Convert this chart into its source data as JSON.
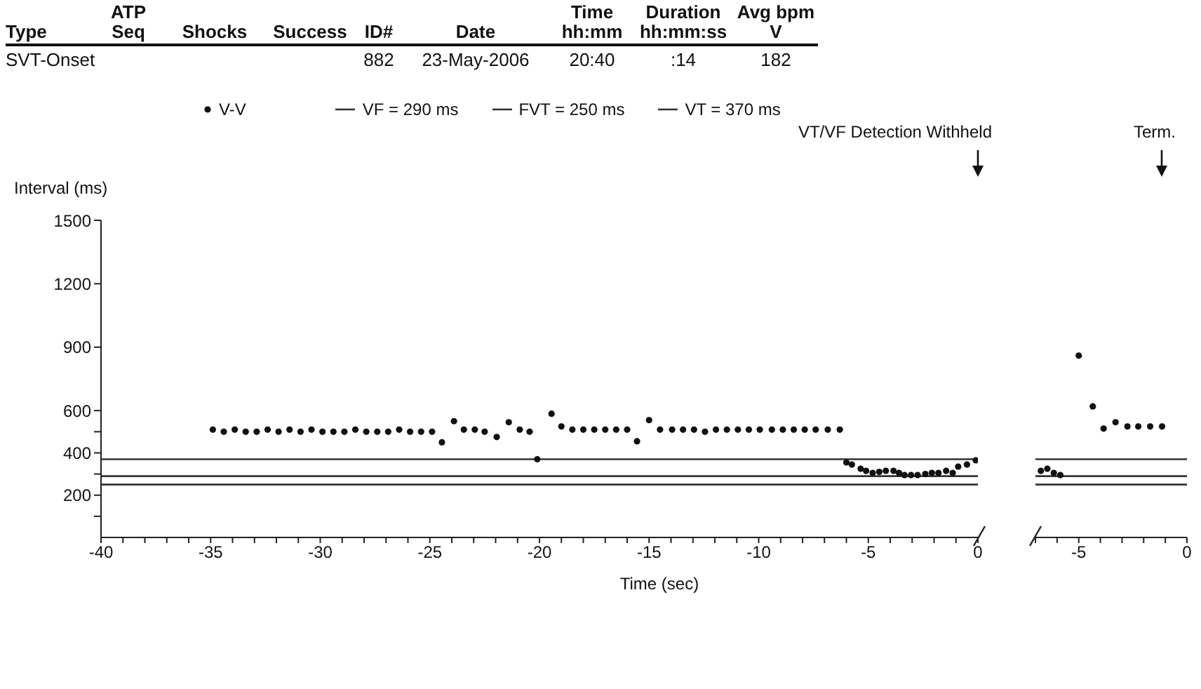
{
  "chart_data": [
    {
      "type": "other",
      "categories": [
        "Type",
        "ATP\nSeq",
        "Shocks",
        "Success",
        "ID#",
        "Date",
        "Time\nhh:mm",
        "Duration\nhh:mm:ss",
        "Avg bpm\nV"
      ],
      "annotations": [
        {
          "text": "SVT-Onset",
          "x": "Type"
        },
        {
          "text": "882",
          "x": "ID#"
        },
        {
          "text": "23-May-2006",
          "x": "Date"
        },
        {
          "text": "20:40",
          "x": "Time\nhh:mm"
        },
        {
          "text": ":14",
          "x": "Duration\nhh:mm:ss"
        },
        {
          "text": "182",
          "x": "Avg bpm\nV"
        }
      ]
    },
    {
      "type": "scatter",
      "xlabel": "Time (sec)",
      "ylabel": "Interval (ms)",
      "legend": "top",
      "marker": "circle",
      "grid": false,
      "xlim": [
        -40,
        0
      ],
      "ylim": [
        0,
        1500
      ],
      "xticks": [
        -40,
        {
          "value": -39,
          "label": null
        },
        {
          "value": -38,
          "label": null
        },
        {
          "value": -37,
          "label": null
        },
        {
          "value": -36,
          "label": null
        },
        -35,
        {
          "value": -34,
          "label": null
        },
        {
          "value": -33,
          "label": null
        },
        {
          "value": -32,
          "label": null
        },
        {
          "value": -31,
          "label": null
        },
        -30,
        {
          "value": -29,
          "label": null
        },
        {
          "value": -28,
          "label": null
        },
        {
          "value": -27,
          "label": null
        },
        {
          "value": -26,
          "label": null
        },
        -25,
        {
          "value": -24,
          "label": null
        },
        {
          "value": -23,
          "label": null
        },
        {
          "value": -22,
          "label": null
        },
        {
          "value": -21,
          "label": null
        },
        -20,
        {
          "value": -19,
          "label": null
        },
        {
          "value": -18,
          "label": null
        },
        {
          "value": -17,
          "label": null
        },
        {
          "value": -16,
          "label": null
        },
        -15,
        {
          "value": -14,
          "label": null
        },
        {
          "value": -13,
          "label": null
        },
        {
          "value": -12,
          "label": null
        },
        {
          "value": -11,
          "label": null
        },
        -10,
        {
          "value": -9,
          "label": null
        },
        {
          "value": -8,
          "label": null
        },
        {
          "value": -7,
          "label": null
        },
        {
          "value": -6,
          "label": null
        },
        -5,
        {
          "value": -4,
          "label": null
        },
        {
          "value": -3,
          "label": null
        },
        {
          "value": -2,
          "label": null
        },
        {
          "value": -1,
          "label": null
        },
        0
      ],
      "yticks": [
        {
          "value": 100,
          "label": null
        },
        200,
        {
          "value": 300,
          "label": null
        },
        400,
        {
          "value": 500,
          "label": null
        },
        600,
        900,
        1200,
        1500
      ],
      "ref_lines": [
        {
          "axis": "y",
          "value": 290,
          "label": "VF = 290 ms",
          "color": "#333333"
        },
        {
          "axis": "y",
          "value": 250,
          "label": "FVT = 250 ms",
          "color": "#333333"
        },
        {
          "axis": "y",
          "value": 370,
          "label": "VT = 370 ms",
          "color": "#333333"
        }
      ],
      "annotations": [
        "VT/VF Detection Withheld"
      ],
      "series": [
        {
          "name": "V-V",
          "color": "#111111",
          "x": [
            -34.9,
            -34.4,
            -33.9,
            -33.4,
            -32.9,
            -32.4,
            -31.9,
            -31.4,
            -30.9,
            -30.4,
            -29.9,
            -29.4,
            -28.9,
            -28.4,
            -27.9,
            -27.4,
            -26.9,
            -26.4,
            -25.9,
            -25.4,
            -24.9,
            -24.45,
            -23.9,
            -23.45,
            -22.95,
            -22.5,
            -21.95,
            -21.4,
            -20.9,
            -20.45,
            -20.1,
            -19.45,
            -19.0,
            -18.5,
            -18.0,
            -17.5,
            -17.0,
            -16.5,
            -16.0,
            -15.55,
            -15.0,
            -14.5,
            -13.95,
            -13.45,
            -12.95,
            -12.45,
            -11.95,
            -11.45,
            -10.95,
            -10.45,
            -9.95,
            -9.4,
            -8.9,
            -8.4,
            -7.9,
            -7.4,
            -6.85,
            -6.3,
            -6.0,
            -5.75,
            -5.35,
            -5.1,
            -4.8,
            -4.5,
            -4.2,
            -3.85,
            -3.6,
            -3.35,
            -3.05,
            -2.75,
            -2.4,
            -2.1,
            -1.8,
            -1.45,
            -1.15,
            -0.9,
            -0.5,
            -0.1
          ],
          "values": [
            510,
            500,
            510,
            500,
            500,
            510,
            500,
            510,
            500,
            510,
            500,
            500,
            500,
            510,
            500,
            500,
            500,
            510,
            500,
            500,
            500,
            450,
            550,
            510,
            510,
            500,
            475,
            545,
            510,
            500,
            370,
            585,
            525,
            510,
            510,
            510,
            510,
            510,
            510,
            455,
            555,
            510,
            510,
            510,
            510,
            500,
            510,
            510,
            510,
            510,
            510,
            510,
            510,
            510,
            510,
            510,
            510,
            510,
            355,
            345,
            325,
            315,
            305,
            310,
            315,
            315,
            305,
            295,
            295,
            295,
            300,
            305,
            305,
            315,
            305,
            335,
            345,
            365
          ]
        }
      ]
    },
    {
      "type": "scatter",
      "marker": "circle",
      "grid": false,
      "tick_labels": "x",
      "xlim": [
        -7,
        0
      ],
      "ylim": [
        0,
        1500
      ],
      "xticks": [
        {
          "value": -7,
          "label": null
        },
        {
          "value": -6,
          "label": null
        },
        -5,
        {
          "value": -4,
          "label": null
        },
        {
          "value": -3,
          "label": null
        },
        {
          "value": -2,
          "label": null
        },
        {
          "value": -1,
          "label": null
        },
        0
      ],
      "ref_lines": [
        {
          "axis": "y",
          "value": 290,
          "color": "#333333"
        },
        {
          "axis": "y",
          "value": 250,
          "color": "#333333"
        },
        {
          "axis": "y",
          "value": 370,
          "color": "#333333"
        }
      ],
      "annotations": [
        "Term."
      ],
      "series": [
        {
          "color": "#111111",
          "x": [
            -6.75,
            -6.45,
            -6.15,
            -5.85,
            -5.0,
            -4.35,
            -3.85,
            -3.3,
            -2.75,
            -2.25,
            -1.7,
            -1.15
          ],
          "values": [
            315,
            325,
            305,
            295,
            860,
            620,
            515,
            545,
            525,
            525,
            525,
            525
          ]
        }
      ]
    }
  ]
}
